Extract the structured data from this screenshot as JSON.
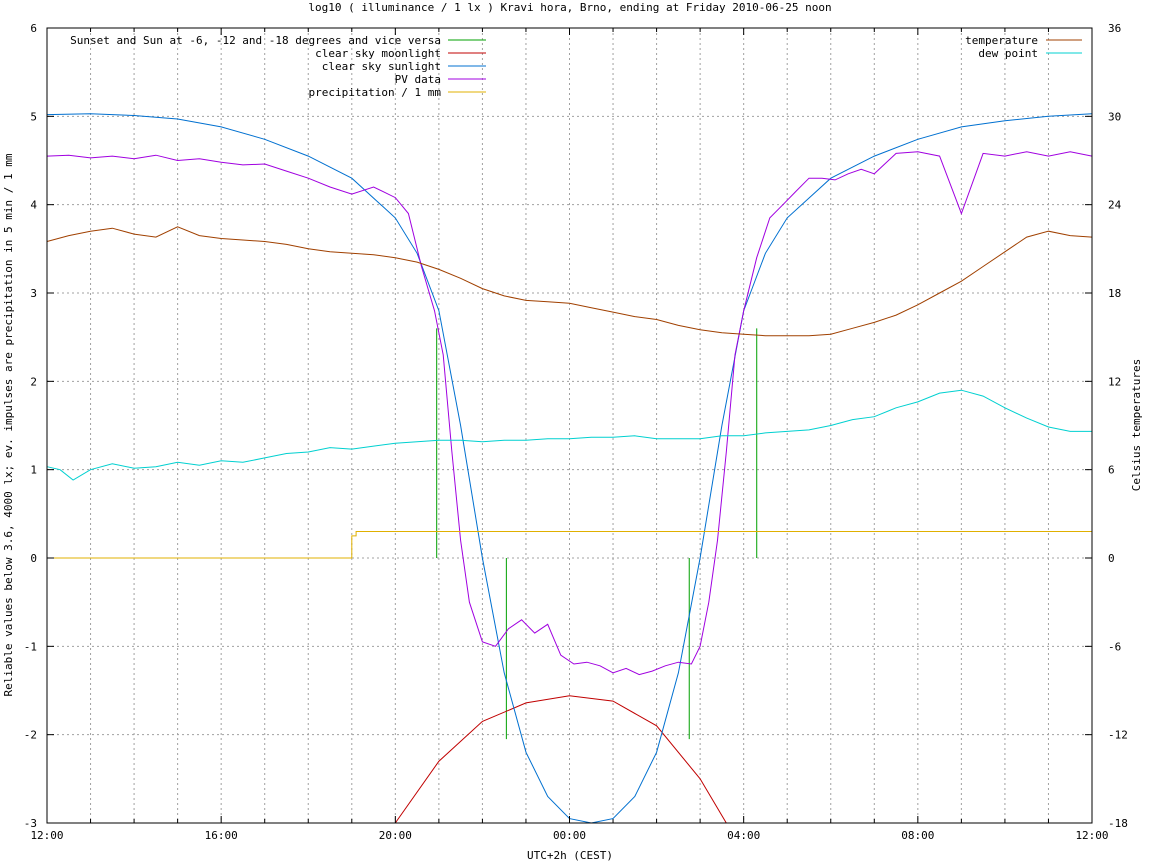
{
  "chart_data": {
    "type": "line",
    "title": "log10 ( illuminance / 1 lx ) Kravi hora, Brno, ending at Friday 2010-06-25 noon",
    "xlabel": "UTC+2h (CEST)",
    "ylabel": "Reliable values below 3.6, 4000 lx; ev. impulses are precipitation in 5 min / 1 mm",
    "y2label": "Celsius temperatures",
    "x_ticks": [
      "12:00",
      "16:00",
      "20:00",
      "00:00",
      "04:00",
      "08:00",
      "12:00"
    ],
    "x_range_hours": [
      0,
      24
    ],
    "ylim": [
      -3,
      6
    ],
    "y_ticks": [
      -3,
      -2,
      -1,
      0,
      1,
      2,
      3,
      4,
      5,
      6
    ],
    "y2lim": [
      -18,
      36
    ],
    "y2_ticks": [
      -18,
      -12,
      -6,
      0,
      6,
      12,
      18,
      24,
      30,
      36
    ],
    "grid": true,
    "legend_left_position": "top-left",
    "legend_right_position": "top-right",
    "series": [
      {
        "name": "Sunset and Sun at -6, -12 and -18 degrees and vice versa",
        "color": "#00a000",
        "kind": "impulses",
        "x": [
          8.95,
          9.7,
          10.55,
          14.75,
          15.5,
          16.3
        ],
        "y": [
          2.6,
          0.0,
          -2.05,
          -2.05,
          0.0,
          2.6
        ]
      },
      {
        "name": "clear sky moonlight",
        "color": "#c00000",
        "kind": "line",
        "x": [
          8.0,
          9.0,
          10.0,
          11.0,
          12.0,
          13.0,
          14.0,
          15.0,
          15.6
        ],
        "y": [
          -3.0,
          -2.3,
          -1.85,
          -1.64,
          -1.56,
          -1.62,
          -1.9,
          -2.5,
          -3.0
        ]
      },
      {
        "name": "clear sky sunlight",
        "color": "#0070d0",
        "kind": "line",
        "x": [
          0,
          1,
          2,
          3,
          4,
          5,
          6,
          7,
          8,
          8.5,
          9,
          9.5,
          10,
          10.5,
          11,
          11.5,
          12,
          12.5,
          13,
          13.5,
          14,
          14.5,
          15,
          15.5,
          16,
          16.5,
          17,
          18,
          19,
          20,
          21,
          22,
          23,
          24
        ],
        "y": [
          5.02,
          5.03,
          5.01,
          4.97,
          4.88,
          4.74,
          4.55,
          4.3,
          3.85,
          3.45,
          2.8,
          1.5,
          0.0,
          -1.3,
          -2.2,
          -2.7,
          -2.95,
          -3.0,
          -2.95,
          -2.7,
          -2.2,
          -1.3,
          0.0,
          1.5,
          2.8,
          3.45,
          3.85,
          4.3,
          4.55,
          4.74,
          4.88,
          4.95,
          5.0,
          5.03
        ]
      },
      {
        "name": "PV data",
        "color": "#a000e0",
        "kind": "line",
        "x": [
          0,
          0.5,
          1,
          1.5,
          2,
          2.5,
          3,
          3.5,
          4,
          4.5,
          5,
          5.5,
          6,
          6.5,
          7,
          7.5,
          8,
          8.3,
          8.6,
          8.9,
          9.1,
          9.3,
          9.5,
          9.7,
          10,
          10.3,
          10.6,
          10.9,
          11.2,
          11.5,
          11.8,
          12.1,
          12.4,
          12.7,
          13,
          13.3,
          13.6,
          13.9,
          14.2,
          14.5,
          14.8,
          15.0,
          15.2,
          15.4,
          15.6,
          15.8,
          16.0,
          16.3,
          16.6,
          16.9,
          17.2,
          17.5,
          17.8,
          18.1,
          18.4,
          18.7,
          19,
          19.5,
          20,
          20.5,
          21,
          21.5,
          22,
          22.5,
          23,
          23.5,
          24
        ],
        "y": [
          4.55,
          4.56,
          4.53,
          4.55,
          4.52,
          4.56,
          4.5,
          4.52,
          4.48,
          4.45,
          4.46,
          4.38,
          4.3,
          4.2,
          4.12,
          4.2,
          4.08,
          3.9,
          3.3,
          2.8,
          2.3,
          1.2,
          0.2,
          -0.5,
          -0.95,
          -1.0,
          -0.8,
          -0.7,
          -0.85,
          -0.75,
          -1.1,
          -1.2,
          -1.18,
          -1.22,
          -1.3,
          -1.25,
          -1.32,
          -1.28,
          -1.22,
          -1.18,
          -1.2,
          -1.0,
          -0.5,
          0.2,
          1.2,
          2.3,
          2.8,
          3.4,
          3.85,
          4.0,
          4.15,
          4.3,
          4.3,
          4.28,
          4.35,
          4.4,
          4.35,
          4.58,
          4.6,
          4.55,
          3.9,
          4.58,
          4.55,
          4.6,
          4.55,
          4.6,
          4.55
        ]
      },
      {
        "name": "precipitation / 1 mm",
        "color": "#e0b000",
        "kind": "step",
        "x": [
          0,
          7.0,
          7.0,
          7.1,
          7.1,
          24
        ],
        "y": [
          0.0,
          0.0,
          0.25,
          0.25,
          0.3,
          0.3
        ]
      },
      {
        "name": "temperature",
        "color": "#a04000",
        "kind": "line",
        "axis": "y2",
        "x": [
          0,
          0.5,
          1,
          1.5,
          2,
          2.5,
          3,
          3.5,
          4,
          4.5,
          5,
          5.5,
          6,
          6.5,
          7,
          7.5,
          8,
          8.5,
          9,
          9.5,
          10,
          10.5,
          11,
          11.5,
          12,
          12.5,
          13,
          13.5,
          14,
          14.5,
          15,
          15.5,
          16,
          16.5,
          17,
          17.5,
          18,
          18.5,
          19,
          19.5,
          20,
          20.5,
          21,
          21.5,
          22,
          22.5,
          23,
          23.5,
          24
        ],
        "y": [
          21.5,
          21.9,
          22.2,
          22.4,
          22.0,
          21.8,
          22.5,
          21.9,
          21.7,
          21.6,
          21.5,
          21.3,
          21.0,
          20.8,
          20.7,
          20.6,
          20.4,
          20.1,
          19.6,
          19.0,
          18.3,
          17.8,
          17.5,
          17.4,
          17.3,
          17.0,
          16.7,
          16.4,
          16.2,
          15.8,
          15.5,
          15.3,
          15.2,
          15.1,
          15.1,
          15.1,
          15.2,
          15.6,
          16.0,
          16.5,
          17.2,
          18.0,
          18.8,
          19.8,
          20.8,
          21.8,
          22.2,
          21.9,
          21.8
        ]
      },
      {
        "name": "dew point",
        "color": "#00d0d0",
        "kind": "line",
        "axis": "y2",
        "x": [
          0,
          0.3,
          0.6,
          1,
          1.5,
          2,
          2.5,
          3,
          3.5,
          4,
          4.5,
          5,
          5.5,
          6,
          6.5,
          7,
          7.5,
          8,
          8.5,
          9,
          9.5,
          10,
          10.5,
          11,
          11.5,
          12,
          12.5,
          13,
          13.5,
          14,
          14.5,
          15,
          15.5,
          16,
          16.5,
          17,
          17.5,
          18,
          18.5,
          19,
          19.5,
          20,
          20.5,
          21,
          21.5,
          22,
          22.5,
          23,
          23.5,
          24
        ],
        "y": [
          6.2,
          6.0,
          5.3,
          6.0,
          6.4,
          6.1,
          6.2,
          6.5,
          6.3,
          6.6,
          6.5,
          6.8,
          7.1,
          7.2,
          7.5,
          7.4,
          7.6,
          7.8,
          7.9,
          8.0,
          8.0,
          7.9,
          8.0,
          8.0,
          8.1,
          8.1,
          8.2,
          8.2,
          8.3,
          8.1,
          8.1,
          8.1,
          8.3,
          8.3,
          8.5,
          8.6,
          8.7,
          9.0,
          9.4,
          9.6,
          10.2,
          10.6,
          11.2,
          11.4,
          11.0,
          10.2,
          9.5,
          8.9,
          8.6,
          8.6
        ]
      }
    ]
  }
}
